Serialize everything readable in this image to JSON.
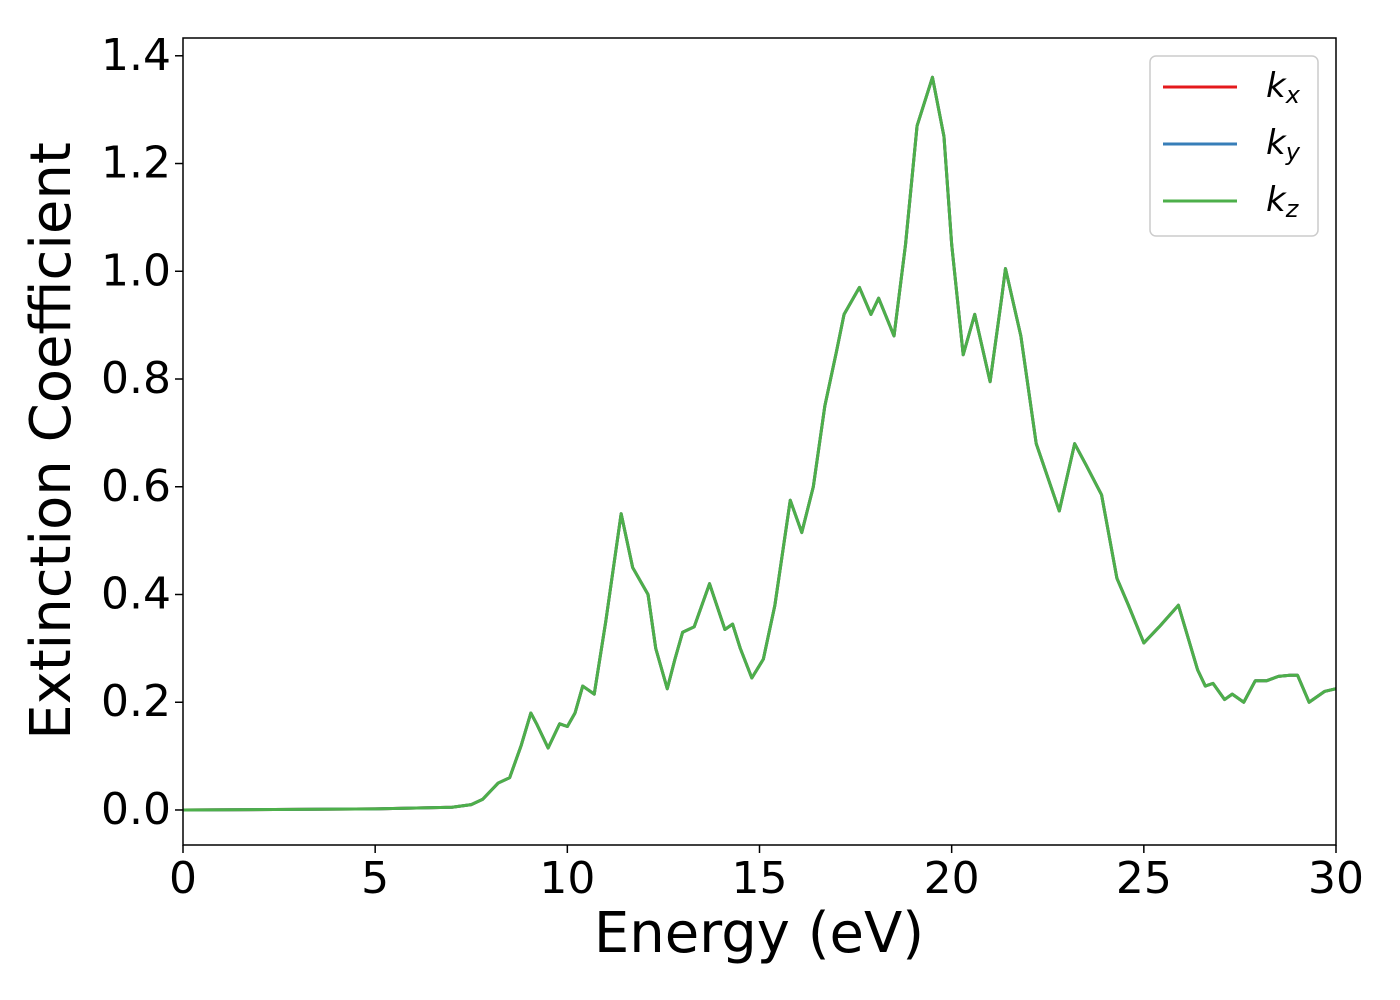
{
  "chart_data": {
    "type": "line",
    "xlabel": "Energy (eV)",
    "ylabel": "Extinction Coefficient",
    "xlim": [
      0,
      30
    ],
    "ylim": [
      -0.065,
      1.433
    ],
    "xticks": [
      0,
      5,
      10,
      15,
      20,
      25,
      30
    ],
    "yticks": [
      {
        "value": 0,
        "label": "0.0"
      },
      0.2,
      0.4,
      0.6,
      0.8,
      {
        "value": 1,
        "label": "1.0"
      },
      1.2,
      1.4
    ],
    "legend": "upper right",
    "x": [
      0,
      5,
      7,
      7.5,
      7.8,
      8.0,
      8.2,
      8.5,
      8.8,
      9.05,
      9.2,
      9.5,
      9.8,
      10.0,
      10.2,
      10.4,
      10.7,
      11.0,
      11.4,
      11.7,
      12.1,
      12.3,
      12.6,
      12.8,
      13.0,
      13.3,
      13.7,
      14.1,
      14.3,
      14.5,
      14.8,
      15.1,
      15.4,
      15.8,
      16.1,
      16.4,
      16.7,
      17.0,
      17.2,
      17.6,
      17.9,
      18.1,
      18.5,
      18.8,
      19.1,
      19.5,
      19.8,
      20.0,
      20.3,
      20.6,
      21.0,
      21.3,
      21.4,
      21.8,
      22.2,
      22.8,
      23.2,
      23.5,
      23.9,
      24.3,
      24.6,
      25.0,
      25.4,
      25.9,
      26.4,
      26.6,
      26.8,
      27.1,
      27.3,
      27.6,
      27.9,
      28.2,
      28.5,
      28.8,
      29.0,
      29.3,
      29.7,
      30.0
    ],
    "series": [
      {
        "name": "kx",
        "color": "#e41a1c",
        "values": [
          0,
          0.002,
          0.005,
          0.01,
          0.02,
          0.035,
          0.05,
          0.06,
          0.12,
          0.18,
          0.16,
          0.115,
          0.16,
          0.155,
          0.18,
          0.23,
          0.215,
          0.35,
          0.55,
          0.45,
          0.4,
          0.3,
          0.225,
          0.28,
          0.33,
          0.34,
          0.42,
          0.335,
          0.345,
          0.3,
          0.245,
          0.28,
          0.38,
          0.575,
          0.515,
          0.6,
          0.75,
          0.85,
          0.92,
          0.97,
          0.92,
          0.95,
          0.88,
          1.05,
          1.27,
          1.36,
          1.25,
          1.05,
          0.845,
          0.92,
          0.795,
          0.95,
          1.005,
          0.88,
          0.68,
          0.555,
          0.68,
          0.64,
          0.585,
          0.43,
          0.38,
          0.31,
          0.34,
          0.38,
          0.26,
          0.23,
          0.235,
          0.205,
          0.215,
          0.2,
          0.24,
          0.24,
          0.248,
          0.25,
          0.25,
          0.2,
          0.22,
          0.225
        ]
      },
      {
        "name": "ky",
        "color": "#377eb8",
        "values": [
          0,
          0.002,
          0.005,
          0.01,
          0.02,
          0.035,
          0.05,
          0.06,
          0.12,
          0.18,
          0.16,
          0.115,
          0.16,
          0.155,
          0.18,
          0.23,
          0.215,
          0.35,
          0.55,
          0.45,
          0.4,
          0.3,
          0.225,
          0.28,
          0.33,
          0.34,
          0.42,
          0.335,
          0.345,
          0.3,
          0.245,
          0.28,
          0.38,
          0.575,
          0.515,
          0.6,
          0.75,
          0.85,
          0.92,
          0.97,
          0.92,
          0.95,
          0.88,
          1.05,
          1.27,
          1.36,
          1.25,
          1.05,
          0.845,
          0.92,
          0.795,
          0.95,
          1.005,
          0.88,
          0.68,
          0.555,
          0.68,
          0.64,
          0.585,
          0.43,
          0.38,
          0.31,
          0.34,
          0.38,
          0.26,
          0.23,
          0.235,
          0.205,
          0.215,
          0.2,
          0.24,
          0.24,
          0.248,
          0.25,
          0.25,
          0.2,
          0.22,
          0.225
        ]
      },
      {
        "name": "kz",
        "color": "#4daf4a",
        "values": [
          0,
          0.002,
          0.005,
          0.01,
          0.02,
          0.035,
          0.05,
          0.06,
          0.12,
          0.18,
          0.16,
          0.115,
          0.16,
          0.155,
          0.18,
          0.23,
          0.215,
          0.35,
          0.55,
          0.45,
          0.4,
          0.3,
          0.225,
          0.28,
          0.33,
          0.34,
          0.42,
          0.335,
          0.345,
          0.3,
          0.245,
          0.28,
          0.38,
          0.575,
          0.515,
          0.6,
          0.75,
          0.85,
          0.92,
          0.97,
          0.92,
          0.95,
          0.88,
          1.05,
          1.27,
          1.36,
          1.25,
          1.05,
          0.845,
          0.92,
          0.795,
          0.95,
          1.005,
          0.88,
          0.68,
          0.555,
          0.68,
          0.64,
          0.585,
          0.43,
          0.38,
          0.31,
          0.34,
          0.38,
          0.26,
          0.23,
          0.235,
          0.205,
          0.215,
          0.2,
          0.24,
          0.24,
          0.248,
          0.25,
          0.25,
          0.2,
          0.22,
          0.225
        ]
      }
    ]
  }
}
